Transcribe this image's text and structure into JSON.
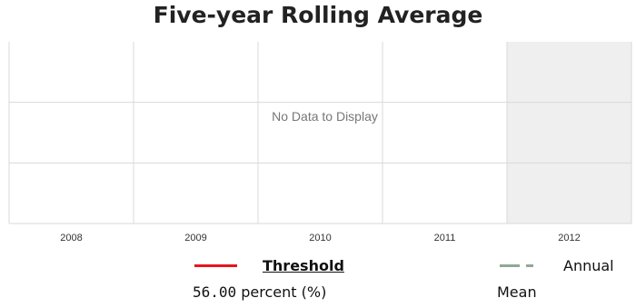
{
  "chart_data": {
    "type": "line",
    "title": "Five-year Rolling Average",
    "categories": [
      "2008",
      "2009",
      "2010",
      "2011",
      "2012"
    ],
    "highlighted_category": "2012",
    "series": [],
    "empty_message": "No Data to Display",
    "grid": true,
    "legend": [
      {
        "label": "Threshold",
        "value": "56.00",
        "unit": "percent (%)",
        "style": "solid",
        "color": "#e8141a"
      },
      {
        "label_line1": "Annual",
        "label_line2": "Mean",
        "style": "dashed",
        "color": "#8fa896"
      }
    ]
  }
}
